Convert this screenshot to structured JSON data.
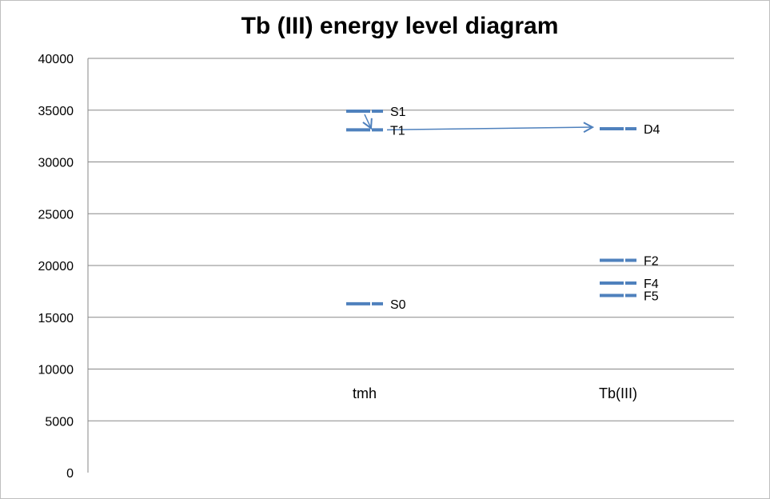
{
  "chart_data": {
    "type": "scatter",
    "title": "Tb (III) energy level diagram",
    "xlabel": "",
    "ylabel": "",
    "ylim": [
      0,
      40000
    ],
    "y_ticks": [
      "0",
      "5000",
      "10000",
      "15000",
      "20000",
      "25000",
      "30000",
      "35000",
      "40000"
    ],
    "grid": true,
    "categories": [
      "tmh",
      "Tb(III)"
    ],
    "series": [
      {
        "category": "tmh",
        "levels": [
          {
            "label": "S1",
            "value": 34900
          },
          {
            "label": "T1",
            "value": 33100
          },
          {
            "label": "S0",
            "value": 16300
          }
        ]
      },
      {
        "category": "Tb(III)",
        "levels": [
          {
            "label": "D4",
            "value": 33200
          },
          {
            "label": "F2",
            "value": 20500
          },
          {
            "label": "F4",
            "value": 18300
          },
          {
            "label": "F5",
            "value": 17100
          }
        ]
      }
    ],
    "arrows": [
      {
        "from": "S1",
        "to": "T1"
      },
      {
        "from": "T1",
        "to": "D4"
      }
    ],
    "colors": {
      "level": "#4f81bd",
      "arrow": "#4f81bd",
      "grid": "#878787"
    }
  }
}
